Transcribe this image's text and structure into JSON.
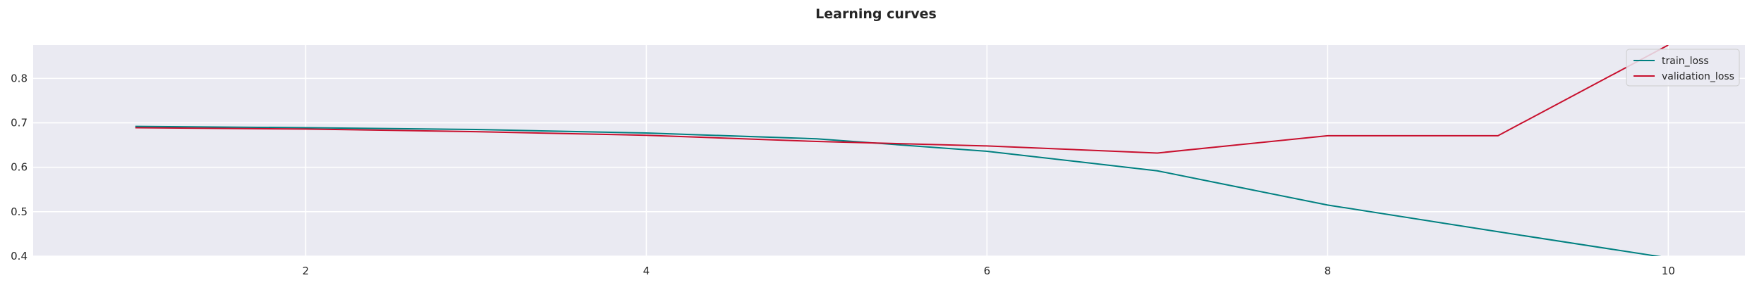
{
  "chart_data": {
    "type": "line",
    "title": "Learning curves",
    "x": [
      1,
      2,
      3,
      4,
      5,
      6,
      7,
      8,
      9,
      10
    ],
    "xlim": [
      0.4,
      10.45
    ],
    "ylim": [
      0.4,
      0.875
    ],
    "x_ticks": [
      2,
      4,
      6,
      8,
      10
    ],
    "y_ticks": [
      0.4,
      0.5,
      0.6,
      0.7,
      0.8
    ],
    "y_tick_labels": [
      "0.4",
      "0.5",
      "0.6",
      "0.7",
      "0.8"
    ],
    "grid": true,
    "legend_position": "top-right",
    "plot_background": "#eaeaf2",
    "grid_color": "#ffffff",
    "series": [
      {
        "name": "train_loss",
        "color": "#008080",
        "values": [
          0.692,
          0.689,
          0.685,
          0.677,
          0.664,
          0.636,
          0.592,
          0.515,
          0.455,
          0.396
        ]
      },
      {
        "name": "validation_loss",
        "color": "#c8102e",
        "values": [
          0.689,
          0.686,
          0.68,
          0.672,
          0.658,
          0.648,
          0.632,
          0.671,
          0.671,
          0.875
        ]
      }
    ]
  }
}
